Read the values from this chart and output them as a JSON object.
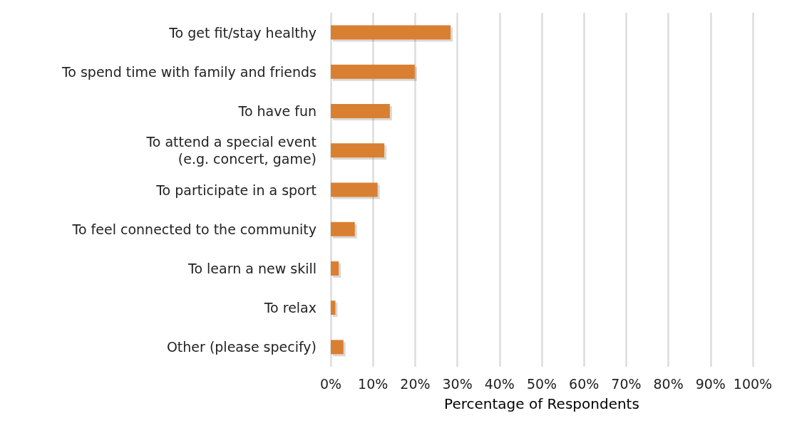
{
  "chart_data": {
    "type": "bar",
    "orientation": "horizontal",
    "xlabel": "Percentage of Respondents",
    "categories": [
      "To get fit/stay healthy",
      "To spend time with family and friends",
      "To have fun",
      "To attend a special event\n(e.g. concert, game)",
      "To participate in a sport",
      "To feel connected to the community",
      "To learn a new skill",
      "To relax",
      "Other (please specify)"
    ],
    "values": [
      28.4,
      19.9,
      14.0,
      12.7,
      11.1,
      5.7,
      1.9,
      1.1,
      3.0
    ],
    "color": "#d97f30",
    "xlim": [
      0,
      100
    ],
    "xticks": [
      {
        "value": 0,
        "label": "0%"
      },
      {
        "value": 10,
        "label": "10%"
      },
      {
        "value": 20,
        "label": "20%"
      },
      {
        "value": 30,
        "label": "30%"
      },
      {
        "value": 40,
        "label": "40%"
      },
      {
        "value": 50,
        "label": "50%"
      },
      {
        "value": 60,
        "label": "60%"
      },
      {
        "value": 70,
        "label": "70%"
      },
      {
        "value": 80,
        "label": "80%"
      },
      {
        "value": 90,
        "label": "90%"
      },
      {
        "value": 100,
        "label": "100%"
      }
    ],
    "grid": "x"
  }
}
